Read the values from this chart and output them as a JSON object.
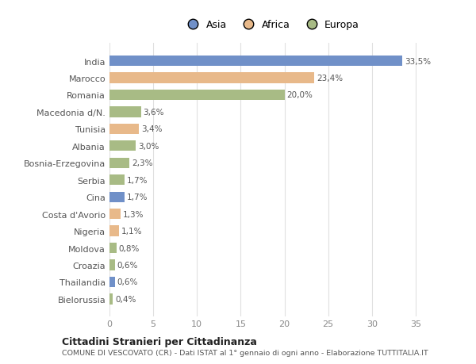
{
  "categories": [
    "India",
    "Marocco",
    "Romania",
    "Macedonia d/N.",
    "Tunisia",
    "Albania",
    "Bosnia-Erzegovina",
    "Serbia",
    "Cina",
    "Costa d'Avorio",
    "Nigeria",
    "Moldova",
    "Croazia",
    "Thailandia",
    "Bielorussia"
  ],
  "values": [
    33.5,
    23.4,
    20.0,
    3.6,
    3.4,
    3.0,
    2.3,
    1.7,
    1.7,
    1.3,
    1.1,
    0.8,
    0.6,
    0.6,
    0.4
  ],
  "labels": [
    "33,5%",
    "23,4%",
    "20,0%",
    "3,6%",
    "3,4%",
    "3,0%",
    "2,3%",
    "1,7%",
    "1,7%",
    "1,3%",
    "1,1%",
    "0,8%",
    "0,6%",
    "0,6%",
    "0,4%"
  ],
  "continents": [
    "Asia",
    "Africa",
    "Europa",
    "Europa",
    "Africa",
    "Europa",
    "Europa",
    "Europa",
    "Asia",
    "Africa",
    "Africa",
    "Europa",
    "Europa",
    "Asia",
    "Europa"
  ],
  "colors": {
    "Asia": "#7090c8",
    "Africa": "#e8b98a",
    "Europa": "#a8bb85"
  },
  "title1": "Cittadini Stranieri per Cittadinanza",
  "title2": "COMUNE DI VESCOVATO (CR) - Dati ISTAT al 1° gennaio di ogni anno - Elaborazione TUTTITALIA.IT",
  "xlim": [
    0,
    37
  ],
  "xticks": [
    0,
    5,
    10,
    15,
    20,
    25,
    30,
    35
  ],
  "bg_color": "#ffffff",
  "plot_bg_color": "#ffffff",
  "grid_color": "#e0e0e0"
}
